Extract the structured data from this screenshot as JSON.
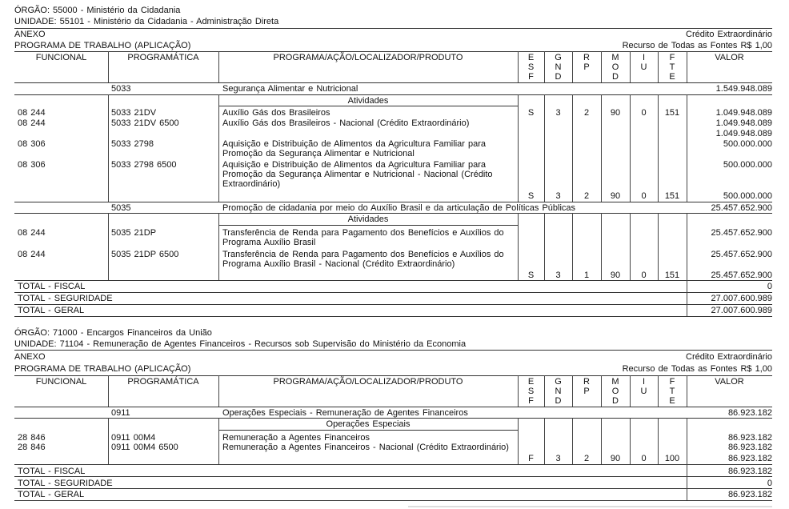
{
  "headers": {
    "funcional": "FUNCIONAL",
    "programatica": "PROGRAMÁTICA",
    "programa": "PROGRAMA/AÇÃO/LOCALIZADOR/PRODUTO",
    "esf": [
      "E",
      "S",
      "F"
    ],
    "gnd": [
      "G",
      "N",
      "D"
    ],
    "rp": [
      "R",
      "P"
    ],
    "mod": [
      "M",
      "O",
      "D"
    ],
    "iu": [
      "I",
      "U"
    ],
    "fte": [
      "F",
      "T",
      "E"
    ],
    "valor": "VALOR"
  },
  "sections": [
    {
      "orgao": "ÓRGÃO: 55000 - Ministério da Cidadania",
      "unidade": "UNIDADE: 55101 - Ministério da Cidadania - Administração Direta",
      "anexo": "ANEXO",
      "credito": "Crédito Extraordinário",
      "programa_trabalho": "PROGRAMA DE TRABALHO (APLICAÇÃO)",
      "recurso": "Recurso de Todas as Fontes R$ 1,00",
      "programs": [
        {
          "code": "5033",
          "name": "Segurança Alimentar e Nutricional",
          "valor": "1.549.948.089",
          "group": "Atividades",
          "rows": [
            {
              "funcional": "08 244",
              "programatica": "5033 21DV",
              "desc": [
                "Auxílio Gás dos Brasileiros"
              ],
              "esf": "S",
              "gnd": "3",
              "rp": "2",
              "mod": "90",
              "iu": "0",
              "fte": "151",
              "valor": "1.049.948.089"
            },
            {
              "funcional": "08 244",
              "programatica": "5033 21DV 6500",
              "desc": [
                "Auxílio Gás dos Brasileiros - Nacional (Crédito Extraordinário)"
              ],
              "valor": "1.049.948.089",
              "subtotal": "1.049.948.089"
            },
            {
              "funcional": "08 306",
              "programatica": "5033 2798",
              "desc": [
                "Aquisição e Distribuição de Alimentos da Agricultura Familiar para",
                "Promoção da Segurança Alimentar e Nutricional"
              ],
              "valor": "500.000.000"
            },
            {
              "funcional": "08 306",
              "programatica": "5033 2798 6500",
              "desc": [
                "Aquisição e Distribuição de Alimentos da Agricultura Familiar para",
                "Promoção da Segurança Alimentar e Nutricional - Nacional (Crédito",
                "Extraordinário)"
              ],
              "valor": "500.000.000"
            },
            {
              "esf": "S",
              "gnd": "3",
              "rp": "2",
              "mod": "90",
              "iu": "0",
              "fte": "151",
              "valor": "500.000.000"
            }
          ]
        },
        {
          "code": "5035",
          "name": "Promoção de cidadania por meio do Auxílio Brasil e da articulação de Políticas Públicas",
          "valor": "25.457.652.900",
          "group": "Atividades",
          "rows": [
            {
              "funcional": "08 244",
              "programatica": "5035 21DP",
              "desc": [
                "Transferência de Renda para Pagamento dos Benefícios e Auxílios do",
                "Programa Auxílio Brasil"
              ],
              "valor": "25.457.652.900"
            },
            {
              "funcional": "08 244",
              "programatica": "5035 21DP 6500",
              "desc": [
                "Transferência de Renda para Pagamento dos Benefícios e Auxílios do",
                "Programa Auxílio Brasil - Nacional (Crédito Extraordinário)"
              ],
              "valor": "25.457.652.900"
            },
            {
              "esf": "S",
              "gnd": "3",
              "rp": "1",
              "mod": "90",
              "iu": "0",
              "fte": "151",
              "valor": "25.457.652.900"
            }
          ]
        }
      ],
      "totals": [
        {
          "label": "TOTAL - FISCAL",
          "valor": "0"
        },
        {
          "label": "TOTAL - SEGURIDADE",
          "valor": "27.007.600.989"
        },
        {
          "label": "TOTAL - GERAL",
          "valor": "27.007.600.989"
        }
      ]
    },
    {
      "orgao": "ÓRGÃO: 71000 - Encargos Financeiros da União",
      "unidade": "UNIDADE: 71104 - Remuneração de Agentes Financeiros - Recursos sob Supervisão do Ministério da Economia",
      "anexo": "ANEXO",
      "credito": "Crédito Extraordinário",
      "programa_trabalho": "PROGRAMA DE TRABALHO (APLICAÇÃO)",
      "recurso": "Recurso de Todas as Fontes R$ 1,00",
      "programs": [
        {
          "code": "0911",
          "name": "Operações Especiais - Remuneração de Agentes Financeiros",
          "valor": "86.923.182",
          "group": "Operações Especiais",
          "rows": [
            {
              "funcional": "28 846",
              "programatica": "0911 00M4",
              "desc": [
                "Remuneração a Agentes Financeiros"
              ],
              "valor": "86.923.182"
            },
            {
              "funcional": "28 846",
              "programatica": "0911 00M4 6500",
              "desc": [
                "Remuneração a Agentes Financeiros - Nacional (Crédito Extraordinário)"
              ],
              "valor": "86.923.182"
            },
            {
              "esf": "F",
              "gnd": "3",
              "rp": "2",
              "mod": "90",
              "iu": "0",
              "fte": "100",
              "valor": "86.923.182"
            }
          ]
        }
      ],
      "totals": [
        {
          "label": "TOTAL - FISCAL",
          "valor": "86.923.182"
        },
        {
          "label": "TOTAL - SEGURIDADE",
          "valor": "0"
        },
        {
          "label": "TOTAL - GERAL",
          "valor": "86.923.182"
        }
      ]
    }
  ]
}
